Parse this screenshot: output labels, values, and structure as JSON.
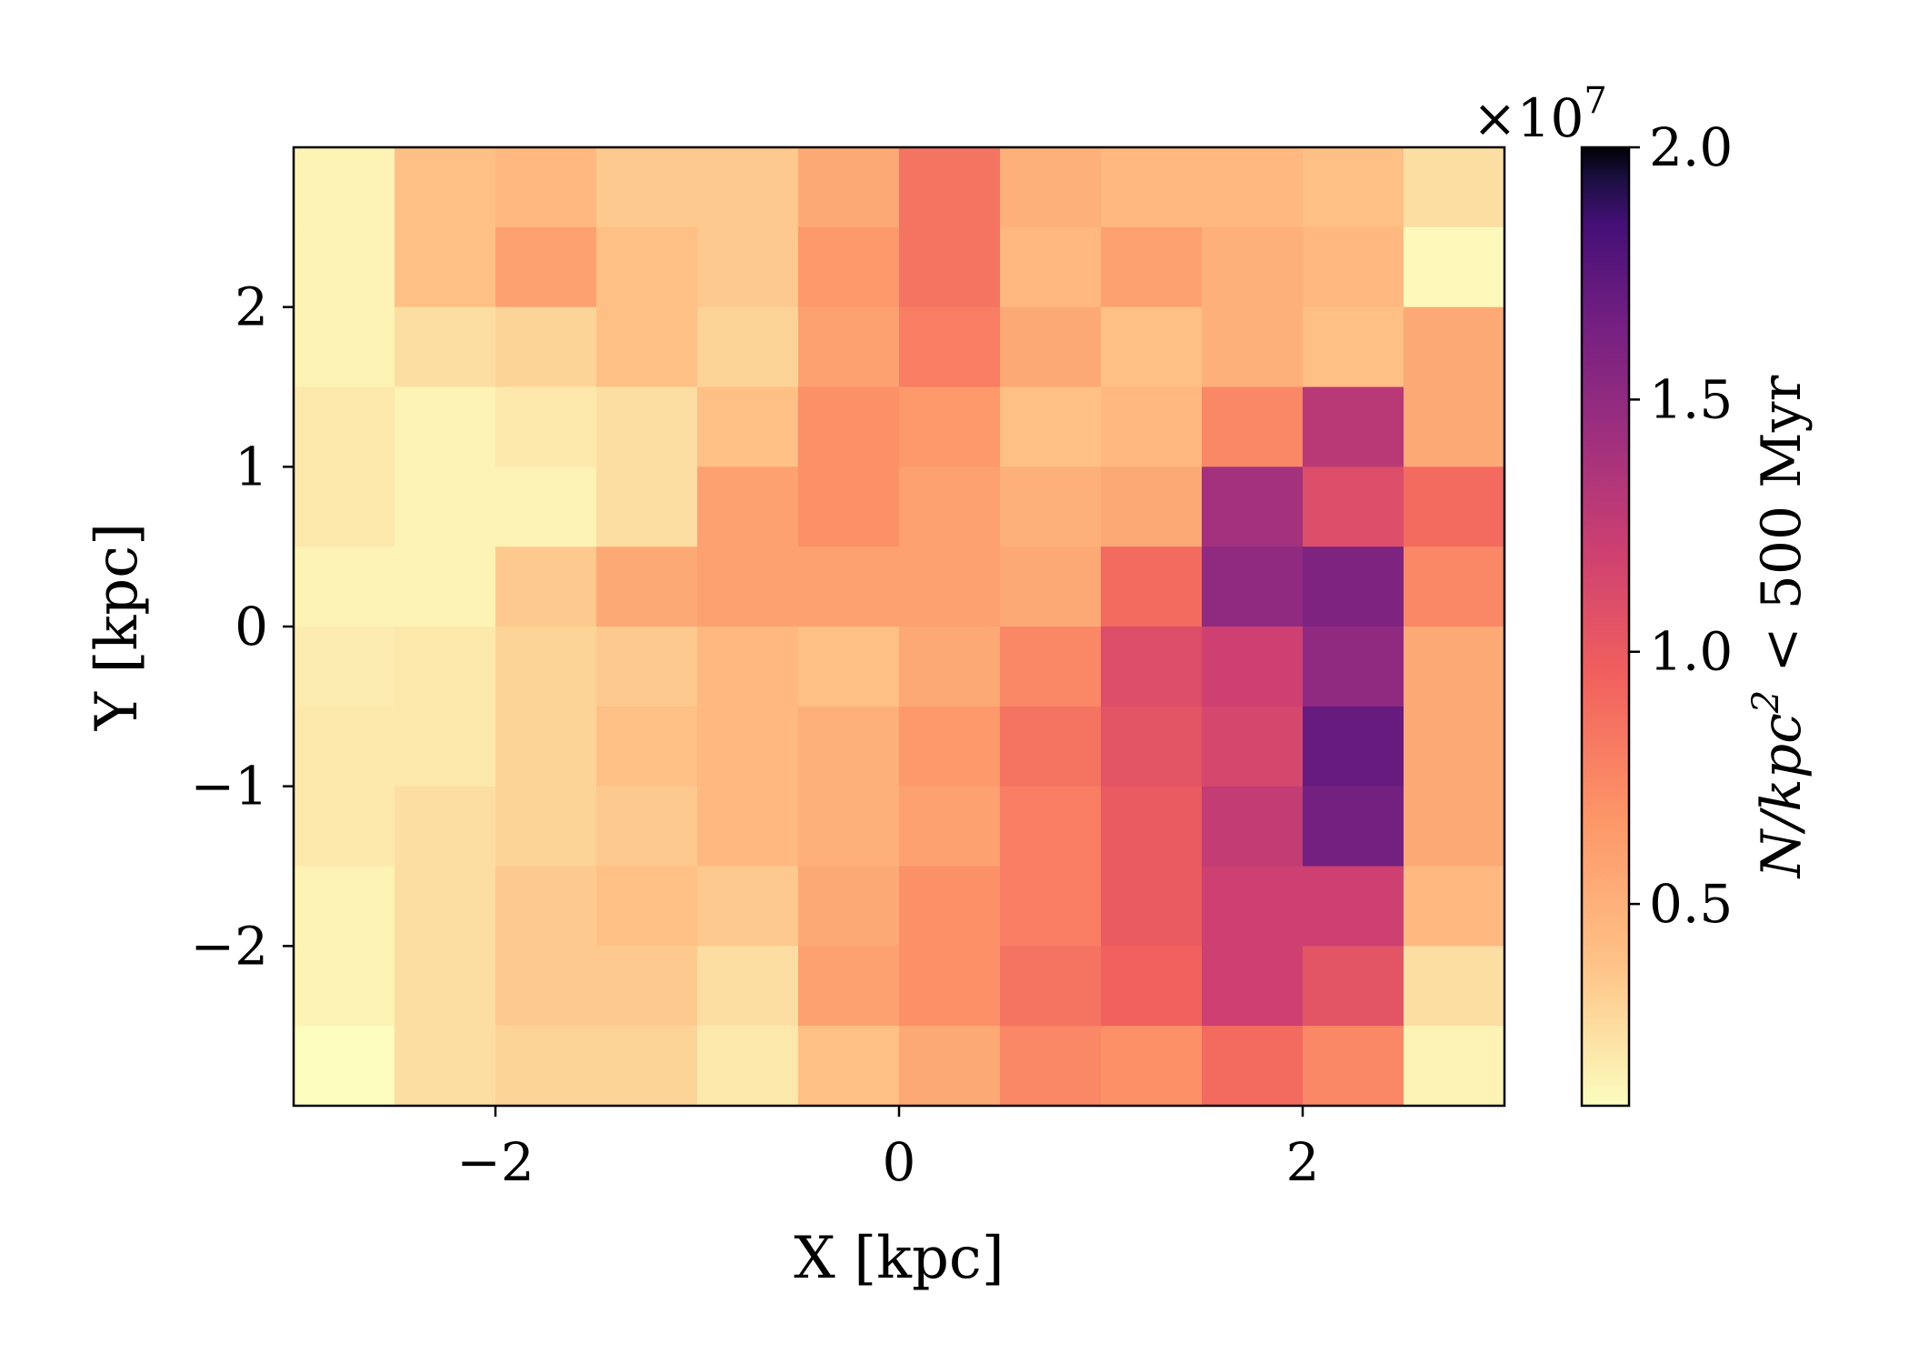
{
  "chart_data": {
    "type": "heatmap",
    "xlabel": "X [kpc]",
    "ylabel": "Y [kpc]",
    "xlim": [
      -3,
      3
    ],
    "ylim": [
      -3,
      3
    ],
    "x_ticks": [
      -2,
      0,
      2
    ],
    "y_ticks": [
      -2,
      -1,
      0,
      1,
      2
    ],
    "x_tick_labels": [
      "−2",
      "0",
      "2"
    ],
    "y_tick_labels": [
      "−2",
      "−1",
      "0",
      "1",
      "2"
    ],
    "colorbar": {
      "label": "N/kpc² < 500 Myr",
      "label_parts": [
        "N/kpc",
        "2",
        " < 500 Myr"
      ],
      "exponent_label": "×10",
      "exponent_power": "7",
      "range": [
        0.1,
        2.0
      ],
      "ticks": [
        0.5,
        1.0,
        1.5,
        2.0
      ],
      "tick_labels": [
        "0.5",
        "1.0",
        "1.5",
        "2.0"
      ],
      "colormap": "magma_r"
    },
    "grid": false,
    "x_bin_centers": [
      -2.75,
      -2.25,
      -1.75,
      -1.25,
      -0.75,
      -0.25,
      0.25,
      0.75,
      1.25,
      1.75,
      2.25,
      2.75
    ],
    "y_bin_centers": [
      2.75,
      2.25,
      1.75,
      1.25,
      0.75,
      0.25,
      -0.25,
      -0.75,
      -1.25,
      -1.75,
      -2.25,
      -2.75
    ],
    "values": [
      [
        0.15,
        0.4,
        0.45,
        0.35,
        0.35,
        0.55,
        0.85,
        0.5,
        0.45,
        0.45,
        0.4,
        0.25
      ],
      [
        0.15,
        0.4,
        0.6,
        0.4,
        0.35,
        0.65,
        0.85,
        0.45,
        0.6,
        0.5,
        0.45,
        0.12
      ],
      [
        0.15,
        0.25,
        0.3,
        0.4,
        0.3,
        0.6,
        0.8,
        0.55,
        0.4,
        0.5,
        0.4,
        0.55
      ],
      [
        0.2,
        0.15,
        0.2,
        0.25,
        0.4,
        0.7,
        0.65,
        0.4,
        0.45,
        0.75,
        1.3,
        0.55
      ],
      [
        0.2,
        0.15,
        0.15,
        0.25,
        0.6,
        0.7,
        0.6,
        0.5,
        0.55,
        1.4,
        1.1,
        0.9
      ],
      [
        0.15,
        0.15,
        0.35,
        0.55,
        0.6,
        0.6,
        0.6,
        0.55,
        0.9,
        1.5,
        1.6,
        0.75
      ],
      [
        0.18,
        0.2,
        0.3,
        0.35,
        0.45,
        0.4,
        0.55,
        0.75,
        1.1,
        1.2,
        1.5,
        0.55
      ],
      [
        0.2,
        0.2,
        0.3,
        0.4,
        0.45,
        0.5,
        0.65,
        0.85,
        1.05,
        1.15,
        1.7,
        0.55
      ],
      [
        0.2,
        0.25,
        0.3,
        0.35,
        0.45,
        0.5,
        0.6,
        0.8,
        1.0,
        1.25,
        1.65,
        0.55
      ],
      [
        0.15,
        0.25,
        0.35,
        0.4,
        0.35,
        0.55,
        0.7,
        0.8,
        1.0,
        1.2,
        1.2,
        0.45
      ],
      [
        0.15,
        0.25,
        0.35,
        0.35,
        0.25,
        0.6,
        0.7,
        0.85,
        0.95,
        1.2,
        1.05,
        0.25
      ],
      [
        0.1,
        0.25,
        0.3,
        0.3,
        0.2,
        0.4,
        0.55,
        0.75,
        0.7,
        0.9,
        0.75,
        0.15
      ]
    ]
  }
}
